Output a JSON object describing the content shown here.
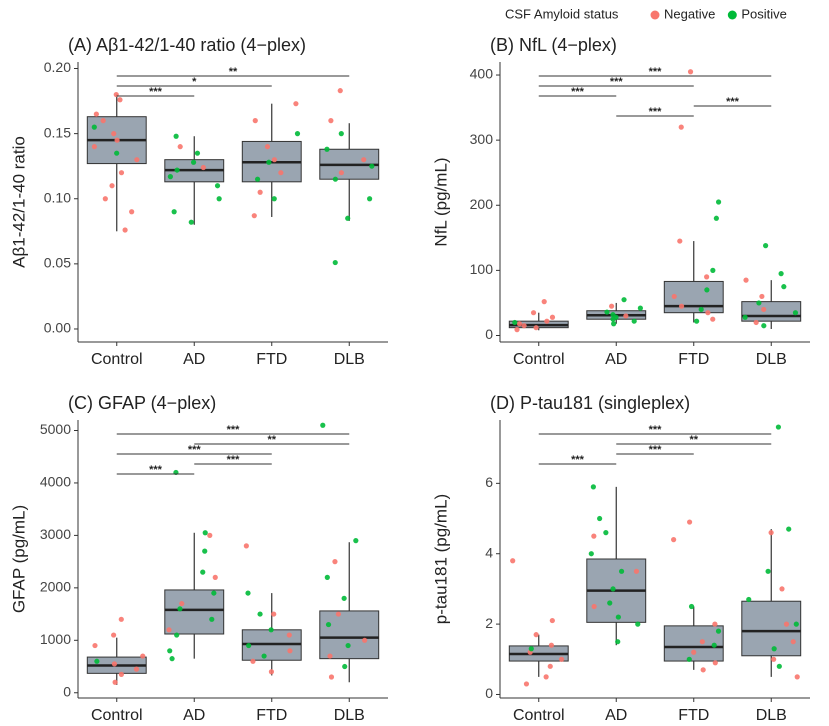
{
  "legend": {
    "title": "CSF Amyloid status",
    "items": [
      {
        "name": "Negative",
        "color": "#f8766d"
      },
      {
        "name": "Positive",
        "color": "#00ba38"
      }
    ]
  },
  "chart_data": [
    {
      "type": "box",
      "title": "(A) Aβ1-42/1-40 ratio (4−plex)",
      "y_label": "Aβ1-42/1-40 ratio",
      "box_color": "#9aa5b1",
      "ylim": [
        -0.01,
        0.205
      ],
      "yticks": [
        {
          "value": 0,
          "label": "0.00"
        },
        {
          "value": 0.05,
          "label": "0.05"
        },
        {
          "value": 0.1,
          "label": "0.10"
        },
        {
          "value": 0.15,
          "label": "0.15"
        },
        {
          "value": 0.2,
          "label": "0.20"
        }
      ],
      "groups": [
        {
          "name": "Control",
          "whisker_low": 0.075,
          "q1": 0.127,
          "median": 0.145,
          "q3": 0.163,
          "whisker_high": 0.18,
          "negative": [
            0.18,
            0.176,
            0.165,
            0.16,
            0.15,
            0.145,
            0.14,
            0.13,
            0.12,
            0.11,
            0.1,
            0.09,
            0.076
          ],
          "positive": [
            0.155,
            0.135
          ]
        },
        {
          "name": "AD",
          "whisker_low": 0.08,
          "q1": 0.113,
          "median": 0.122,
          "q3": 0.13,
          "whisker_high": 0.148,
          "negative": [
            0.14,
            0.124
          ],
          "positive": [
            0.148,
            0.135,
            0.128,
            0.122,
            0.117,
            0.11,
            0.1,
            0.09,
            0.082
          ]
        },
        {
          "name": "FTD",
          "whisker_low": 0.086,
          "q1": 0.113,
          "median": 0.128,
          "q3": 0.144,
          "whisker_high": 0.173,
          "negative": [
            0.173,
            0.16,
            0.14,
            0.13,
            0.12,
            0.105,
            0.087
          ],
          "positive": [
            0.15,
            0.128,
            0.115,
            0.1
          ]
        },
        {
          "name": "DLB",
          "whisker_low": 0.083,
          "q1": 0.115,
          "median": 0.126,
          "q3": 0.138,
          "whisker_high": 0.158,
          "negative": [
            0.183,
            0.16,
            0.13,
            0.12
          ],
          "positive": [
            0.15,
            0.138,
            0.125,
            0.115,
            0.1,
            0.085,
            0.051
          ]
        }
      ],
      "brackets": [
        {
          "from": 0,
          "to": 1,
          "label": "***"
        },
        {
          "from": 0,
          "to": 2,
          "label": "*"
        },
        {
          "from": 0,
          "to": 3,
          "label": "**"
        }
      ]
    },
    {
      "type": "box",
      "title": "(B) NfL (4−plex)",
      "y_label": "NfL (pg/mL)",
      "box_color": "#9aa5b1",
      "ylim": [
        -10,
        420
      ],
      "yticks": [
        0,
        100,
        200,
        300,
        400
      ],
      "groups": [
        {
          "name": "Control",
          "whisker_low": 8,
          "q1": 12,
          "median": 16,
          "q3": 22,
          "whisker_high": 35,
          "negative": [
            52,
            35,
            28,
            22,
            18,
            15,
            12,
            9
          ],
          "positive": [
            20
          ]
        },
        {
          "name": "AD",
          "whisker_low": 18,
          "q1": 25,
          "median": 31,
          "q3": 38,
          "whisker_high": 50,
          "negative": [
            45,
            30
          ],
          "positive": [
            55,
            42,
            36,
            32,
            28,
            25,
            22,
            18
          ]
        },
        {
          "name": "FTD",
          "whisker_low": 20,
          "q1": 35,
          "median": 45,
          "q3": 83,
          "whisker_high": 145,
          "negative": [
            405,
            320,
            145,
            90,
            60,
            45,
            35,
            25
          ],
          "positive": [
            205,
            180,
            100,
            70,
            40,
            22
          ]
        },
        {
          "name": "DLB",
          "whisker_low": 10,
          "q1": 22,
          "median": 30,
          "q3": 52,
          "whisker_high": 85,
          "negative": [
            85,
            60,
            40,
            20
          ],
          "positive": [
            138,
            95,
            75,
            50,
            35,
            28,
            15
          ]
        }
      ],
      "brackets": [
        {
          "from": 1,
          "to": 2,
          "label": "***"
        },
        {
          "from": 2,
          "to": 3,
          "label": "***"
        },
        {
          "from": 0,
          "to": 1,
          "label": "***"
        },
        {
          "from": 0,
          "to": 2,
          "label": "***"
        },
        {
          "from": 0,
          "to": 3,
          "label": "***"
        }
      ]
    },
    {
      "type": "box",
      "title": "(C) GFAP (4−plex)",
      "y_label": "GFAP (pg/mL)",
      "box_color": "#9aa5b1",
      "ylim": [
        -100,
        5200
      ],
      "yticks": [
        0,
        1000,
        2000,
        3000,
        4000,
        5000
      ],
      "groups": [
        {
          "name": "Control",
          "whisker_low": 150,
          "q1": 370,
          "median": 520,
          "q3": 680,
          "whisker_high": 1050,
          "negative": [
            1400,
            1100,
            900,
            700,
            550,
            450,
            350,
            200
          ],
          "positive": [
            600
          ]
        },
        {
          "name": "AD",
          "whisker_low": 650,
          "q1": 1120,
          "median": 1580,
          "q3": 1960,
          "whisker_high": 3050,
          "negative": [
            3000,
            2200,
            1700,
            1200
          ],
          "positive": [
            4200,
            3050,
            2700,
            2300,
            1900,
            1600,
            1400,
            1100,
            800,
            650
          ]
        },
        {
          "name": "FTD",
          "whisker_low": 330,
          "q1": 620,
          "median": 930,
          "q3": 1200,
          "whisker_high": 1900,
          "negative": [
            2800,
            1500,
            1100,
            800,
            600,
            400
          ],
          "positive": [
            1900,
            1500,
            1200,
            900,
            700
          ]
        },
        {
          "name": "DLB",
          "whisker_low": 200,
          "q1": 650,
          "median": 1050,
          "q3": 1560,
          "whisker_high": 2870,
          "negative": [
            2500,
            1500,
            1000,
            700,
            300
          ],
          "positive": [
            5100,
            2900,
            2200,
            1800,
            1300,
            900,
            500
          ]
        }
      ],
      "brackets": [
        {
          "from": 0,
          "to": 1,
          "label": "***"
        },
        {
          "from": 1,
          "to": 2,
          "label": "***"
        },
        {
          "from": 0,
          "to": 2,
          "label": "***"
        },
        {
          "from": 1,
          "to": 3,
          "label": "**"
        },
        {
          "from": 0,
          "to": 3,
          "label": "***"
        }
      ]
    },
    {
      "type": "box",
      "title": "(D) P-tau181 (singleplex)",
      "y_label": "p-tau181 (pg/mL)",
      "box_color": "#9aa5b1",
      "ylim": [
        -0.1,
        7.8
      ],
      "yticks": [
        0,
        2,
        4,
        6
      ],
      "groups": [
        {
          "name": "Control",
          "whisker_low": 0.5,
          "q1": 0.95,
          "median": 1.15,
          "q3": 1.38,
          "whisker_high": 1.7,
          "negative": [
            3.8,
            2.1,
            1.7,
            1.4,
            1.2,
            1.0,
            0.8,
            0.5,
            0.3
          ],
          "positive": [
            1.3
          ]
        },
        {
          "name": "AD",
          "whisker_low": 1.4,
          "q1": 2.05,
          "median": 2.95,
          "q3": 3.85,
          "whisker_high": 5.9,
          "negative": [
            4.5,
            3.5,
            2.5
          ],
          "positive": [
            5.9,
            5.0,
            4.6,
            4.0,
            3.5,
            3.0,
            2.6,
            2.2,
            2.0,
            1.5
          ]
        },
        {
          "name": "FTD",
          "whisker_low": 0.7,
          "q1": 0.95,
          "median": 1.35,
          "q3": 1.95,
          "whisker_high": 2.5,
          "negative": [
            4.9,
            4.4,
            2.0,
            1.5,
            1.2,
            0.9,
            0.7
          ],
          "positive": [
            2.5,
            1.8,
            1.4,
            1.0
          ]
        },
        {
          "name": "DLB",
          "whisker_low": 0.5,
          "q1": 1.1,
          "median": 1.8,
          "q3": 2.65,
          "whisker_high": 4.7,
          "negative": [
            4.6,
            3.0,
            2.0,
            1.5,
            1.0,
            0.5
          ],
          "positive": [
            7.6,
            4.7,
            3.5,
            2.7,
            2.0,
            1.3,
            0.8
          ]
        }
      ],
      "brackets": [
        {
          "from": 0,
          "to": 1,
          "label": "***"
        },
        {
          "from": 1,
          "to": 2,
          "label": "***"
        },
        {
          "from": 1,
          "to": 3,
          "label": "**"
        },
        {
          "from": 0,
          "to": 3,
          "label": "***"
        }
      ]
    }
  ]
}
